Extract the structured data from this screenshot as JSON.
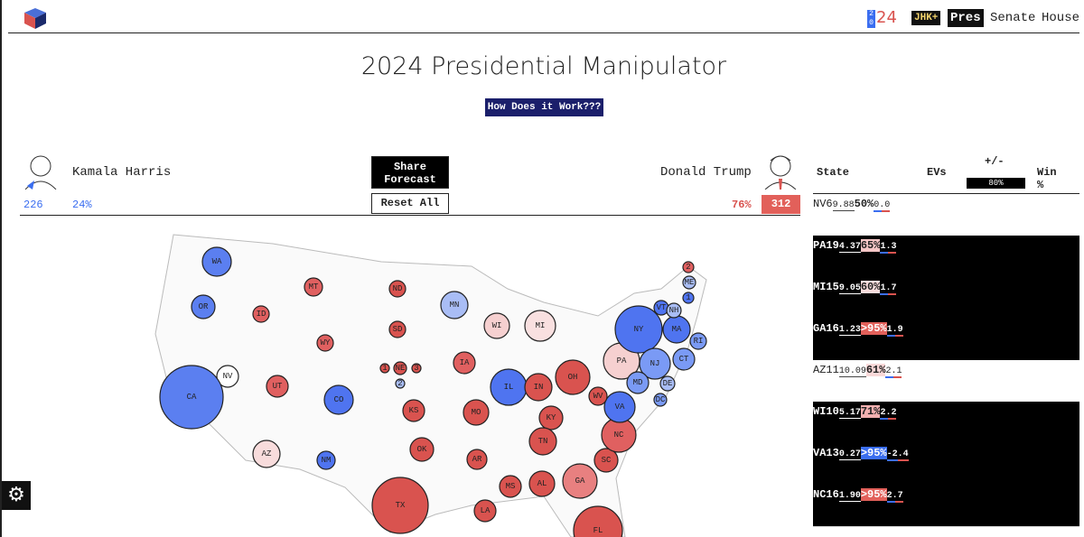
{
  "nav": {
    "logo_stack": [
      "2",
      "0"
    ],
    "logo_text": "24",
    "items": [
      "JHK+",
      "Pres",
      "Senate",
      "House"
    ]
  },
  "title": "2024 Presidential Manipulator",
  "how_button": "How Does it Work???",
  "harris": {
    "name": "Kamala Harris",
    "ev": "226",
    "pct": "24%"
  },
  "trump": {
    "name": "Donald Trump",
    "ev": "312",
    "pct": "76%"
  },
  "share_button": "Share Forecast",
  "reset_button": "Reset All",
  "table": {
    "headers": [
      "State",
      "EVs",
      "+/-",
      "Win %"
    ],
    "slider_label": "80%",
    "rows": [
      {
        "state": "NV",
        "evs": "6",
        "shift": "9.88",
        "margin": "0.0",
        "win": "50%",
        "selected": false,
        "win_color": "#ffffff"
      },
      {
        "state": "PA",
        "evs": "19",
        "shift": "4.37",
        "margin": "1.3",
        "win": "65%",
        "selected": true,
        "win_color": "#f6c6c6"
      },
      {
        "state": "MI",
        "evs": "15",
        "shift": "9.05",
        "margin": "1.7",
        "win": "60%",
        "selected": true,
        "win_color": "#f9dcdc"
      },
      {
        "state": "GA",
        "evs": "16",
        "shift": "1.23",
        "margin": "1.9",
        "win": ">95%",
        "selected": true,
        "win_color": "#e2605a"
      },
      {
        "state": "AZ",
        "evs": "11",
        "shift": "10.09",
        "margin": "2.1",
        "win": "61%",
        "selected": false,
        "win_color": "#f9d8d8"
      },
      {
        "state": "WI",
        "evs": "10",
        "shift": "5.17",
        "margin": "2.2",
        "win": "71%",
        "selected": true,
        "win_color": "#f2b0b0"
      },
      {
        "state": "VA",
        "evs": "13",
        "shift": "0.27",
        "margin": "-2.4",
        "win": ">95%",
        "selected": true,
        "win_color": "#3b6ef0"
      },
      {
        "state": "NC",
        "evs": "16",
        "shift": "1.90",
        "margin": "2.7",
        "win": ">95%",
        "selected": true,
        "win_color": "#e2605a"
      }
    ]
  },
  "map": {
    "states": [
      {
        "label": "WA",
        "color": "#5b7ff0"
      },
      {
        "label": "OR",
        "color": "#5b7ff0"
      },
      {
        "label": "ID",
        "color": "#e06060"
      },
      {
        "label": "MT",
        "color": "#e06060"
      },
      {
        "label": "WY",
        "color": "#e06060"
      },
      {
        "label": "UT",
        "color": "#e06060"
      },
      {
        "label": "CO",
        "color": "#4f74f0"
      },
      {
        "label": "NV",
        "color": "#ffffff"
      },
      {
        "label": "CA",
        "color": "#5b7ff0"
      },
      {
        "label": "AZ",
        "color": "#f8dcdc"
      },
      {
        "label": "NM",
        "color": "#4f74f0"
      },
      {
        "label": "ND",
        "color": "#d9534f"
      },
      {
        "label": "SD",
        "color": "#d9534f"
      },
      {
        "label": "NE",
        "color": "#d9534f"
      },
      {
        "label": "1",
        "color": "#d9534f"
      },
      {
        "label": "3",
        "color": "#d9534f"
      },
      {
        "label": "2",
        "color": "#a9bdf5"
      },
      {
        "label": "KS",
        "color": "#d9534f"
      },
      {
        "label": "OK",
        "color": "#d9534f"
      },
      {
        "label": "TX",
        "color": "#d9534f"
      },
      {
        "label": "MN",
        "color": "#a9bdf5"
      },
      {
        "label": "IA",
        "color": "#e06060"
      },
      {
        "label": "MO",
        "color": "#d9534f"
      },
      {
        "label": "AR",
        "color": "#d9534f"
      },
      {
        "label": "LA",
        "color": "#d9534f"
      },
      {
        "label": "WI",
        "color": "#f6d0d0"
      },
      {
        "label": "IL",
        "color": "#4f74f0"
      },
      {
        "label": "MI",
        "color": "#f9e0e0"
      },
      {
        "label": "IN",
        "color": "#d9534f"
      },
      {
        "label": "OH",
        "color": "#d9534f"
      },
      {
        "label": "KY",
        "color": "#d9534f"
      },
      {
        "label": "TN",
        "color": "#d9534f"
      },
      {
        "label": "MS",
        "color": "#d9534f"
      },
      {
        "label": "AL",
        "color": "#d9534f"
      },
      {
        "label": "GA",
        "color": "#e88080"
      },
      {
        "label": "FL",
        "color": "#d9534f"
      },
      {
        "label": "SC",
        "color": "#d9534f"
      },
      {
        "label": "NC",
        "color": "#e06060"
      },
      {
        "label": "VA",
        "color": "#4f74f0"
      },
      {
        "label": "WV",
        "color": "#d9534f"
      },
      {
        "label": "PA",
        "color": "#f6d0d0"
      },
      {
        "label": "NY",
        "color": "#4f74f0"
      },
      {
        "label": "NJ",
        "color": "#7a9af5"
      },
      {
        "label": "MD",
        "color": "#7a9af5"
      },
      {
        "label": "DE",
        "color": "#a9bdf5"
      },
      {
        "label": "DC",
        "color": "#7a9af5"
      },
      {
        "label": "CT",
        "color": "#7a9af5"
      },
      {
        "label": "RI",
        "color": "#7a9af5"
      },
      {
        "label": "MA",
        "color": "#4f74f0"
      },
      {
        "label": "VT",
        "color": "#4f74f0"
      },
      {
        "label": "NH",
        "color": "#a9bdf5"
      },
      {
        "label": "ME",
        "color": "#a9bdf5"
      },
      {
        "label": "2",
        "color": "#e06060"
      },
      {
        "label": "1",
        "color": "#4f74f0"
      }
    ]
  }
}
